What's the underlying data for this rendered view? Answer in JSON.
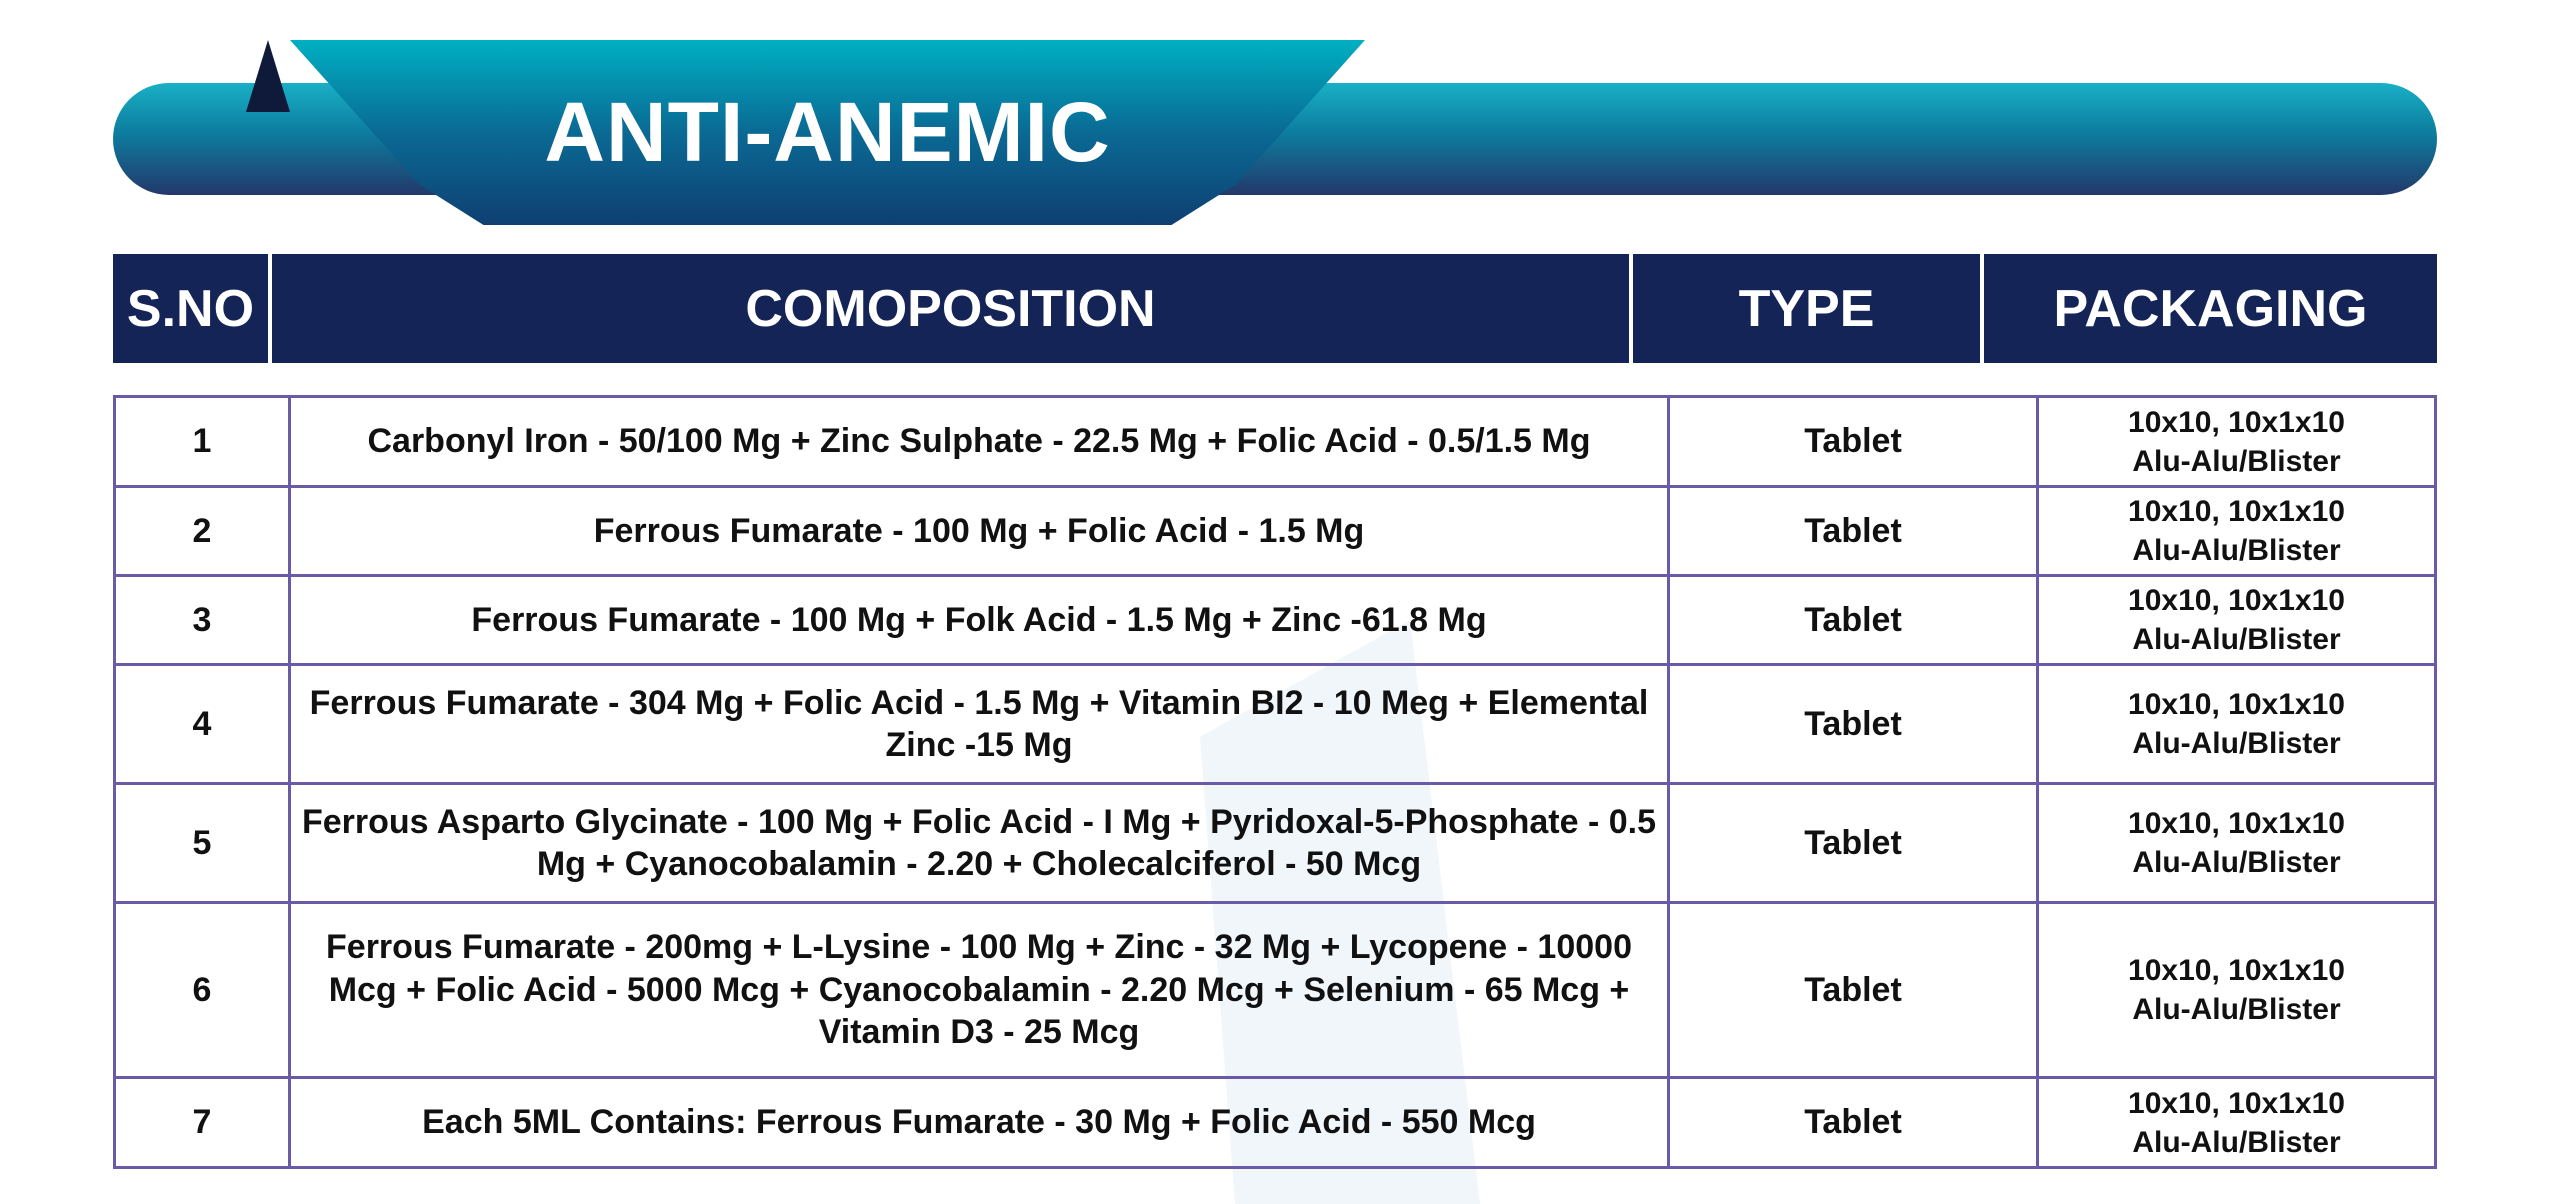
{
  "title": "ANTI-ANEMIC",
  "columns": [
    "S.NO",
    "COMOPOSITION",
    "TYPE",
    "PACKAGING"
  ],
  "rows": [
    {
      "sno": "1",
      "composition": "Carbonyl Iron - 50/100 Mg + Zinc Sulphate - 22.5 Mg + Folic Acid - 0.5/1.5 Mg",
      "type": "Tablet",
      "pack1": "10x10, 10x1x10",
      "pack2": "Alu-Alu/Blister"
    },
    {
      "sno": "2",
      "composition": "Ferrous Fumarate - 100 Mg + Folic Acid - 1.5 Mg",
      "type": "Tablet",
      "pack1": "10x10, 10x1x10",
      "pack2": "Alu-Alu/Blister"
    },
    {
      "sno": "3",
      "composition": "Ferrous Fumarate - 100 Mg + Folk Acid - 1.5 Mg + Zinc -61.8 Mg",
      "type": "Tablet",
      "pack1": "10x10, 10x1x10",
      "pack2": "Alu-Alu/Blister"
    },
    {
      "sno": "4",
      "composition": "Ferrous Fumarate - 304 Mg + Folic Acid - 1.5 Mg + Vitamin BI2 - 10 Meg + Elemental Zinc -15 Mg",
      "type": "Tablet",
      "pack1": "10x10, 10x1x10",
      "pack2": "Alu-Alu/Blister"
    },
    {
      "sno": "5",
      "composition": "Ferrous Asparto Glycinate - 100 Mg + Folic Acid - I Mg + Pyridoxal-5-Phosphate - 0.5 Mg + Cyanocobalamin - 2.20 + Cholecalciferol - 50 Mcg",
      "type": "Tablet",
      "pack1": "10x10, 10x1x10",
      "pack2": "Alu-Alu/Blister"
    },
    {
      "sno": "6",
      "composition": "Ferrous Fumarate - 200mg + L-Lysine - 100 Mg + Zinc - 32 Mg + Lycopene - 10000 Mcg + Folic Acid - 5000 Mcg + Cyanocobalamin - 2.20 Mcg + Selenium - 65 Mcg + Vitamin D3 - 25 Mcg",
      "type": "Tablet",
      "pack1": "10x10, 10x1x10",
      "pack2": "Alu-Alu/Blister"
    },
    {
      "sno": "7",
      "composition": "Each 5ML Contains: Ferrous Fumarate - 30 Mg + Folic Acid - 550 Mcg",
      "type": "Tablet",
      "pack1": "10x10, 10x1x10",
      "pack2": "Alu-Alu/Blister"
    }
  ]
}
